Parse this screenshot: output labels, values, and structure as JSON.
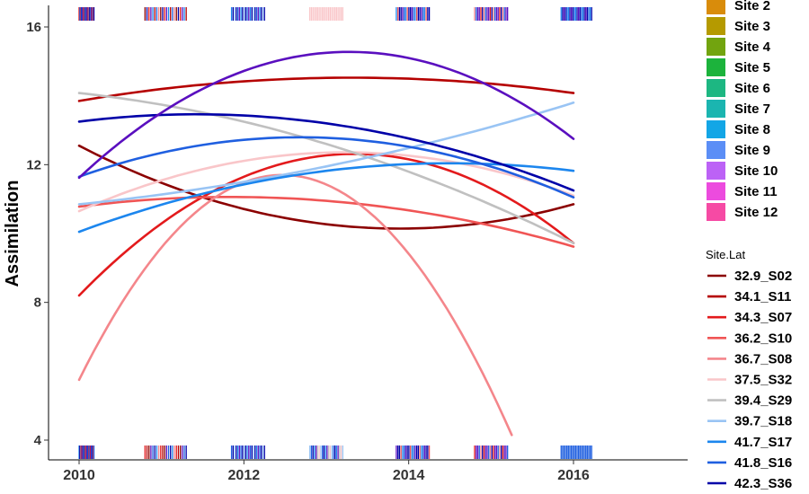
{
  "chart_data": {
    "type": "line",
    "title": "",
    "xlabel": "",
    "ylabel": "Assimilation",
    "xlim": [
      2009.6,
      2017.4
    ],
    "ylim": [
      3.6,
      16.5
    ],
    "x_ticks": [
      2010,
      2012,
      2014,
      2016
    ],
    "x_tick_labels": [
      "2010",
      "2012",
      "2014",
      "2016"
    ],
    "y_ticks": [
      4,
      8,
      12,
      16
    ],
    "y_tick_labels": [
      "4",
      "8",
      "12",
      "16"
    ],
    "grid": false,
    "legend_placement": "right",
    "site_legend": {
      "title": "",
      "entries": [
        {
          "label": "Site 2",
          "color": "#D98C0B"
        },
        {
          "label": "Site 3",
          "color": "#B59A00"
        },
        {
          "label": "Site 4",
          "color": "#72A40F"
        },
        {
          "label": "Site 5",
          "color": "#1CB33C"
        },
        {
          "label": "Site 6",
          "color": "#1DB782"
        },
        {
          "label": "Site 7",
          "color": "#1BB5B0"
        },
        {
          "label": "Site 8",
          "color": "#13A6E6"
        },
        {
          "label": "Site 9",
          "color": "#5B8EF6"
        },
        {
          "label": "Site 10",
          "color": "#BC62F6"
        },
        {
          "label": "Site 11",
          "color": "#EC4BDE"
        },
        {
          "label": "Site 12",
          "color": "#F64AA4"
        }
      ]
    },
    "line_legend": {
      "title": "Site.Lat",
      "entries": [
        {
          "label": "32.9_S02",
          "color": "#8B0000"
        },
        {
          "label": "34.1_S11",
          "color": "#B50000"
        },
        {
          "label": "34.3_S07",
          "color": "#E31A1C"
        },
        {
          "label": "36.2_S10",
          "color": "#F05555"
        },
        {
          "label": "36.7_S08",
          "color": "#F4868B"
        },
        {
          "label": "37.5_S32",
          "color": "#F9C6C9"
        },
        {
          "label": "39.4_S29",
          "color": "#C0C0C0"
        },
        {
          "label": "39.7_S18",
          "color": "#99C4F4"
        },
        {
          "label": "41.7_S17",
          "color": "#1C86EE"
        },
        {
          "label": "41.8_S16",
          "color": "#1F5FE0"
        },
        {
          "label": "42.3_S36",
          "color": "#0000A8"
        }
      ]
    },
    "series": [
      {
        "name": "32.9_S02",
        "color": "#8B0000",
        "x": [
          2010,
          2013,
          2016
        ],
        "y": [
          12.55,
          10.27,
          10.85
        ]
      },
      {
        "name": "34.1_S11",
        "color": "#B50000",
        "x": [
          2010,
          2013,
          2016
        ],
        "y": [
          13.85,
          14.52,
          14.08
        ]
      },
      {
        "name": "34.3_S07",
        "color": "#E31A1C",
        "x": [
          2010,
          2013,
          2016
        ],
        "y": [
          8.2,
          12.27,
          9.72
        ]
      },
      {
        "name": "36.2_S10",
        "color": "#F05555",
        "x": [
          2010,
          2013,
          2016
        ],
        "y": [
          10.78,
          10.95,
          9.62
        ]
      },
      {
        "name": "36.7_S08",
        "color": "#F4868B",
        "x": [
          2010,
          2012.5,
          2015.25
        ],
        "y": [
          5.75,
          11.7,
          4.15
        ]
      },
      {
        "name": "37.5_S32",
        "color": "#F9C6C9",
        "x": [
          2010,
          2013,
          2016
        ],
        "y": [
          10.65,
          12.35,
          11.1
        ]
      },
      {
        "name": "39.4_S29",
        "color": "#C0C0C0",
        "x": [
          2010,
          2013,
          2016
        ],
        "y": [
          14.08,
          12.6,
          9.72
        ]
      },
      {
        "name": "39.7_S18",
        "color": "#99C4F4",
        "x": [
          2010,
          2013,
          2016
        ],
        "y": [
          10.85,
          11.95,
          13.8
        ]
      },
      {
        "name": "41.7_S17",
        "color": "#1C86EE",
        "x": [
          2010,
          2013,
          2016
        ],
        "y": [
          10.05,
          11.82,
          11.82
        ]
      },
      {
        "name": "41.8_S16",
        "color": "#1F5FE0",
        "x": [
          2010,
          2013,
          2016
        ],
        "y": [
          11.65,
          12.78,
          11.05
        ]
      },
      {
        "name": "42.3_S36",
        "color": "#0000A8",
        "x": [
          2010,
          2013,
          2016
        ],
        "y": [
          13.25,
          13.2,
          11.25
        ]
      },
      {
        "name": "",
        "color": "#5A0FBF",
        "x": [
          2010,
          2013,
          2016
        ],
        "y": [
          11.62,
          15.25,
          12.75
        ]
      }
    ],
    "rug_clusters": [
      {
        "x_start": 2010.0,
        "x_end": 2010.18,
        "colors": [
          "#0000A8",
          "#1C86EE",
          "#5A0FBF",
          "#E31A1C",
          "#1F5FE0",
          "#F05555"
        ]
      },
      {
        "x_start": 2010.8,
        "x_end": 2011.3,
        "colors": [
          "#5A0FBF",
          "#E31A1C",
          "#0000A8",
          "#8B0000",
          "#F4868B",
          "#1F5FE0",
          "#B50000",
          "#1C86EE"
        ]
      },
      {
        "x_start": 2011.85,
        "x_end": 2012.25,
        "colors": [
          "#0000A8",
          "#1F5FE0",
          "#5A0FBF",
          "#1C86EE",
          "#0000A8",
          "#99C4F4"
        ]
      },
      {
        "x_start": 2012.8,
        "x_end": 2013.2,
        "colors": [
          "#5A0FBF",
          "#99C4F4",
          "#1C86EE",
          "#F9C6C9",
          "#0000A8",
          "#C0C0C0",
          "#1F5FE0"
        ]
      },
      {
        "x_start": 2013.85,
        "x_end": 2014.25,
        "colors": [
          "#0000A8",
          "#5A0FBF",
          "#1F5FE0",
          "#1C86EE",
          "#F05555",
          "#0000A8"
        ]
      },
      {
        "x_start": 2014.8,
        "x_end": 2015.2,
        "colors": [
          "#5A0FBF",
          "#E31A1C",
          "#0000A8",
          "#F4868B",
          "#1F5FE0",
          "#5A0FBF"
        ]
      },
      {
        "x_start": 2015.85,
        "x_end": 2016.22,
        "colors": [
          "#0000A8",
          "#1F5FE0",
          "#5A0FBF",
          "#1C86EE",
          "#0000A8"
        ]
      }
    ]
  }
}
